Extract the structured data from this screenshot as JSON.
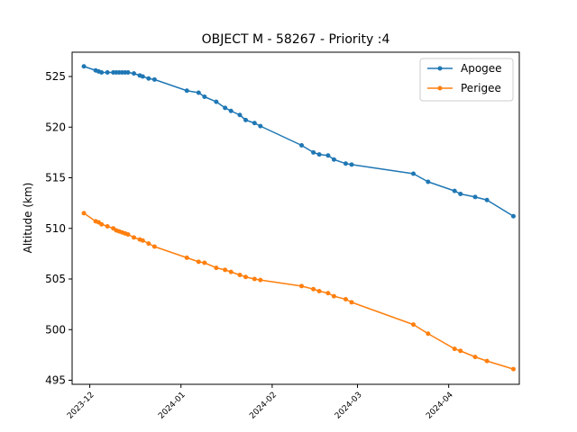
{
  "chart_data": {
    "type": "line",
    "title": "OBJECT M - 58267 - Priority :4",
    "xlabel": "",
    "ylabel": "Altitude (km)",
    "xlim": [
      "2023-11-25",
      "2024-04-25"
    ],
    "ylim": [
      494.6,
      527.4
    ],
    "xticks": [
      "2023-12",
      "2024-01",
      "2024-02",
      "2024-03",
      "2024-04"
    ],
    "yticks": [
      495,
      500,
      505,
      510,
      515,
      520,
      525
    ],
    "legend": {
      "position": "top-right",
      "entries": [
        "Apogee",
        "Perigee"
      ]
    },
    "grid": false,
    "series": [
      {
        "name": "Apogee",
        "color": "#1f77b4",
        "points": [
          [
            "2023-11-29",
            526.0
          ],
          [
            "2023-12-03",
            525.6
          ],
          [
            "2023-12-04",
            525.5
          ],
          [
            "2023-12-05",
            525.4
          ],
          [
            "2023-12-07",
            525.4
          ],
          [
            "2023-12-09",
            525.4
          ],
          [
            "2023-12-10",
            525.4
          ],
          [
            "2023-12-11",
            525.4
          ],
          [
            "2023-12-12",
            525.4
          ],
          [
            "2023-12-13",
            525.4
          ],
          [
            "2023-12-14",
            525.4
          ],
          [
            "2023-12-16",
            525.3
          ],
          [
            "2023-12-18",
            525.1
          ],
          [
            "2023-12-19",
            525.0
          ],
          [
            "2023-12-21",
            524.8
          ],
          [
            "2023-12-23",
            524.7
          ],
          [
            "2024-01-03",
            523.6
          ],
          [
            "2024-01-07",
            523.4
          ],
          [
            "2024-01-09",
            523.0
          ],
          [
            "2024-01-13",
            522.5
          ],
          [
            "2024-01-16",
            521.9
          ],
          [
            "2024-01-18",
            521.6
          ],
          [
            "2024-01-21",
            521.2
          ],
          [
            "2024-01-23",
            520.7
          ],
          [
            "2024-01-26",
            520.4
          ],
          [
            "2024-01-28",
            520.1
          ],
          [
            "2024-02-11",
            518.2
          ],
          [
            "2024-02-15",
            517.5
          ],
          [
            "2024-02-17",
            517.3
          ],
          [
            "2024-02-20",
            517.2
          ],
          [
            "2024-02-22",
            516.8
          ],
          [
            "2024-02-26",
            516.4
          ],
          [
            "2024-02-28",
            516.3
          ],
          [
            "2024-03-20",
            515.4
          ],
          [
            "2024-03-25",
            514.6
          ],
          [
            "2024-04-03",
            513.7
          ],
          [
            "2024-04-05",
            513.4
          ],
          [
            "2024-04-10",
            513.1
          ],
          [
            "2024-04-14",
            512.8
          ],
          [
            "2024-04-23",
            511.2
          ]
        ]
      },
      {
        "name": "Perigee",
        "color": "#ff7f0e",
        "points": [
          [
            "2023-11-29",
            511.5
          ],
          [
            "2023-12-03",
            510.7
          ],
          [
            "2023-12-04",
            510.6
          ],
          [
            "2023-12-05",
            510.4
          ],
          [
            "2023-12-07",
            510.2
          ],
          [
            "2023-12-09",
            510.0
          ],
          [
            "2023-12-10",
            509.8
          ],
          [
            "2023-12-11",
            509.7
          ],
          [
            "2023-12-12",
            509.6
          ],
          [
            "2023-12-13",
            509.5
          ],
          [
            "2023-12-14",
            509.4
          ],
          [
            "2023-12-16",
            509.1
          ],
          [
            "2023-12-18",
            508.9
          ],
          [
            "2023-12-19",
            508.8
          ],
          [
            "2023-12-21",
            508.5
          ],
          [
            "2023-12-23",
            508.2
          ],
          [
            "2024-01-03",
            507.1
          ],
          [
            "2024-01-07",
            506.7
          ],
          [
            "2024-01-09",
            506.6
          ],
          [
            "2024-01-13",
            506.1
          ],
          [
            "2024-01-16",
            505.9
          ],
          [
            "2024-01-18",
            505.7
          ],
          [
            "2024-01-21",
            505.4
          ],
          [
            "2024-01-23",
            505.2
          ],
          [
            "2024-01-26",
            505.0
          ],
          [
            "2024-01-28",
            504.9
          ],
          [
            "2024-02-11",
            504.3
          ],
          [
            "2024-02-15",
            504.0
          ],
          [
            "2024-02-17",
            503.8
          ],
          [
            "2024-02-20",
            503.6
          ],
          [
            "2024-02-22",
            503.3
          ],
          [
            "2024-02-26",
            503.0
          ],
          [
            "2024-02-28",
            502.7
          ],
          [
            "2024-03-20",
            500.5
          ],
          [
            "2024-03-25",
            499.6
          ],
          [
            "2024-04-03",
            498.1
          ],
          [
            "2024-04-05",
            497.9
          ],
          [
            "2024-04-10",
            497.3
          ],
          [
            "2024-04-14",
            496.9
          ],
          [
            "2024-04-23",
            496.1
          ]
        ]
      }
    ]
  }
}
